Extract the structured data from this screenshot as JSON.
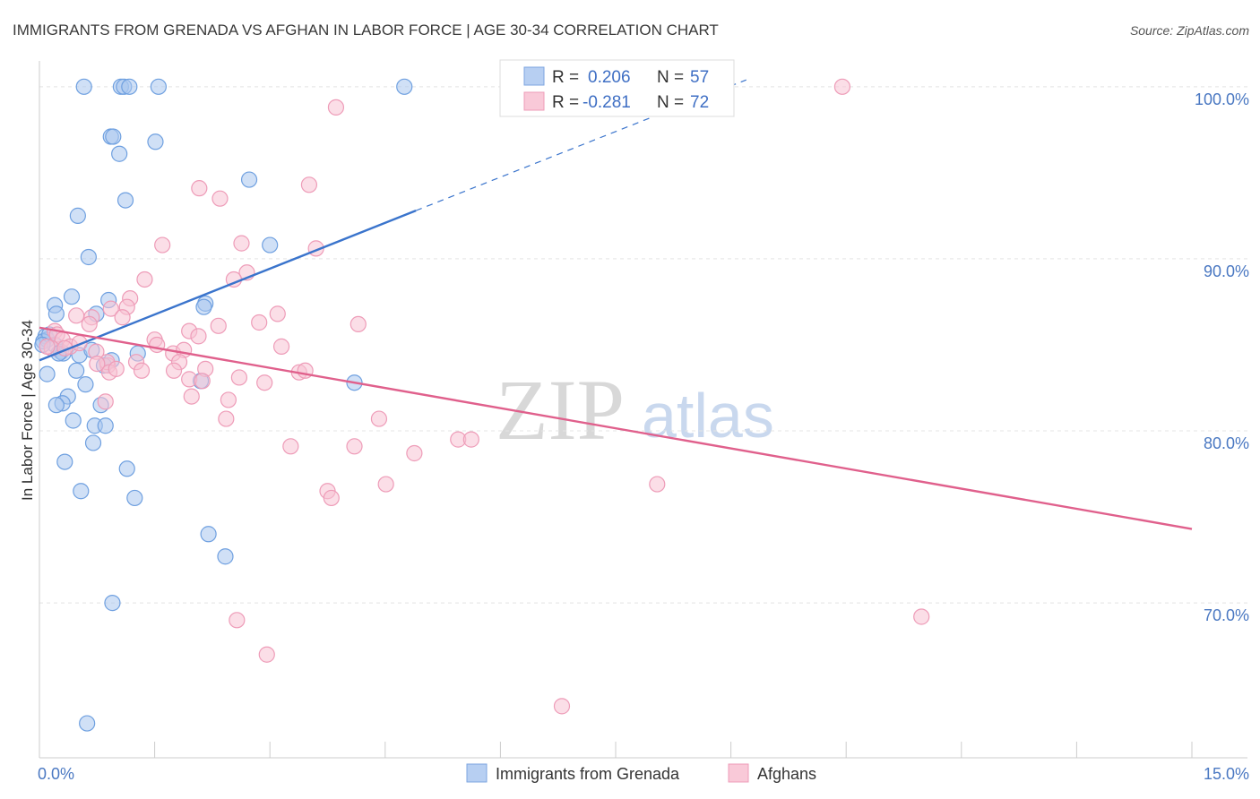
{
  "chart_data": {
    "type": "scatter",
    "title": "IMMIGRANTS FROM GRENADA VS AFGHAN IN LABOR FORCE | AGE 30-34 CORRELATION CHART",
    "source": "Source: ZipAtlas.com",
    "xlabel": "",
    "ylabel": "In Labor Force | Age 30-34",
    "xlim": [
      0,
      15
    ],
    "ylim": [
      61,
      101.5
    ],
    "x_tick_labels": [
      {
        "value": 0,
        "label": "0.0%"
      },
      {
        "value": 15,
        "label": "15.0%"
      }
    ],
    "y_tick_labels": [
      {
        "value": 70,
        "label": "70.0%"
      },
      {
        "value": 80,
        "label": "80.0%"
      },
      {
        "value": 90,
        "label": "90.0%"
      },
      {
        "value": 100,
        "label": "100.0%"
      }
    ],
    "grid": true,
    "legend": {
      "position": "top-center",
      "entries": [
        {
          "series": "Immigrants from Grenada",
          "r_label": "R =",
          "r_value": "0.206",
          "n_label": "N =",
          "n_value": "57"
        },
        {
          "series": "Afghans",
          "r_label": "R =",
          "r_value": "-0.281",
          "n_label": "N =",
          "n_value": "72"
        }
      ]
    },
    "bottom_legend": [
      "Immigrants from Grenada",
      "Afghans"
    ],
    "watermark": {
      "part1": "ZIP",
      "part2": "atlas"
    },
    "series": [
      {
        "name": "Immigrants from Grenada",
        "color": "#6fa0e0",
        "fill": "#a9c6ef",
        "line_color": "#3a74cc",
        "trend": {
          "x0": 0.0,
          "y0": 84.1,
          "x1": 4.9,
          "y1": 92.8,
          "dash_to_x": 9.2,
          "dash_to_y": 100.4
        },
        "points": [
          [
            0.58,
            100
          ],
          [
            1.06,
            100
          ],
          [
            1.1,
            100
          ],
          [
            1.17,
            100
          ],
          [
            1.55,
            100
          ],
          [
            4.75,
            100
          ],
          [
            0.93,
            97.1
          ],
          [
            0.96,
            97.1
          ],
          [
            1.04,
            96.1
          ],
          [
            1.51,
            96.8
          ],
          [
            2.73,
            94.6
          ],
          [
            1.12,
            93.4
          ],
          [
            0.5,
            92.5
          ],
          [
            0.64,
            90.1
          ],
          [
            3.0,
            90.8
          ],
          [
            0.42,
            87.8
          ],
          [
            0.2,
            87.3
          ],
          [
            0.22,
            86.8
          ],
          [
            0.9,
            87.6
          ],
          [
            2.16,
            87.4
          ],
          [
            2.14,
            87.2
          ],
          [
            0.74,
            86.8
          ],
          [
            0.08,
            85.5
          ],
          [
            0.1,
            85.3
          ],
          [
            0.05,
            85.2
          ],
          [
            0.13,
            85.6
          ],
          [
            0.2,
            85.0
          ],
          [
            0.04,
            85.0
          ],
          [
            0.28,
            84.6
          ],
          [
            0.31,
            84.5
          ],
          [
            0.25,
            84.5
          ],
          [
            0.52,
            84.4
          ],
          [
            0.68,
            84.7
          ],
          [
            1.28,
            84.5
          ],
          [
            0.94,
            84.1
          ],
          [
            0.84,
            83.8
          ],
          [
            0.48,
            83.5
          ],
          [
            0.1,
            83.3
          ],
          [
            2.1,
            82.9
          ],
          [
            0.6,
            82.7
          ],
          [
            4.1,
            82.8
          ],
          [
            0.37,
            82.0
          ],
          [
            0.3,
            81.6
          ],
          [
            0.22,
            81.5
          ],
          [
            0.8,
            81.5
          ],
          [
            0.44,
            80.6
          ],
          [
            0.72,
            80.3
          ],
          [
            0.86,
            80.3
          ],
          [
            0.7,
            79.3
          ],
          [
            0.33,
            78.2
          ],
          [
            1.14,
            77.8
          ],
          [
            0.54,
            76.5
          ],
          [
            1.24,
            76.1
          ],
          [
            2.2,
            74.0
          ],
          [
            2.42,
            72.7
          ],
          [
            0.95,
            70.0
          ],
          [
            0.62,
            63.0
          ]
        ]
      },
      {
        "name": "Afghans",
        "color": "#ee9cb8",
        "fill": "#f8c2d4",
        "line_color": "#e0608c",
        "trend": {
          "x0": 0.0,
          "y0": 86.0,
          "x1": 15.0,
          "y1": 74.3
        },
        "points": [
          [
            10.45,
            100
          ],
          [
            3.86,
            98.8
          ],
          [
            2.08,
            94.1
          ],
          [
            3.51,
            94.3
          ],
          [
            2.35,
            93.5
          ],
          [
            1.6,
            90.8
          ],
          [
            2.63,
            90.9
          ],
          [
            3.6,
            90.6
          ],
          [
            2.7,
            89.2
          ],
          [
            2.53,
            88.8
          ],
          [
            1.37,
            88.8
          ],
          [
            1.18,
            87.7
          ],
          [
            1.14,
            87.2
          ],
          [
            0.93,
            87.1
          ],
          [
            0.48,
            86.7
          ],
          [
            1.08,
            86.6
          ],
          [
            0.68,
            86.6
          ],
          [
            3.1,
            86.8
          ],
          [
            2.86,
            86.3
          ],
          [
            4.15,
            86.2
          ],
          [
            0.65,
            86.2
          ],
          [
            1.95,
            85.8
          ],
          [
            2.33,
            86.1
          ],
          [
            0.2,
            85.8
          ],
          [
            0.23,
            85.6
          ],
          [
            0.3,
            85.3
          ],
          [
            1.5,
            85.3
          ],
          [
            2.07,
            85.5
          ],
          [
            1.53,
            85.0
          ],
          [
            3.15,
            84.9
          ],
          [
            0.16,
            84.8
          ],
          [
            0.4,
            84.9
          ],
          [
            0.74,
            84.6
          ],
          [
            1.74,
            84.5
          ],
          [
            1.88,
            84.7
          ],
          [
            1.82,
            84.0
          ],
          [
            1.26,
            84.0
          ],
          [
            0.89,
            83.8
          ],
          [
            0.88,
            84.0
          ],
          [
            0.75,
            83.9
          ],
          [
            1.33,
            83.5
          ],
          [
            1.75,
            83.5
          ],
          [
            2.16,
            83.6
          ],
          [
            3.38,
            83.4
          ],
          [
            3.46,
            83.5
          ],
          [
            0.91,
            83.4
          ],
          [
            2.6,
            83.1
          ],
          [
            1.95,
            83.0
          ],
          [
            2.12,
            82.9
          ],
          [
            2.93,
            82.8
          ],
          [
            1.98,
            82.0
          ],
          [
            2.46,
            81.8
          ],
          [
            0.86,
            81.7
          ],
          [
            2.43,
            80.7
          ],
          [
            4.42,
            80.7
          ],
          [
            5.45,
            79.5
          ],
          [
            5.62,
            79.5
          ],
          [
            3.27,
            79.1
          ],
          [
            4.1,
            79.1
          ],
          [
            4.88,
            78.7
          ],
          [
            4.51,
            76.9
          ],
          [
            8.04,
            76.9
          ],
          [
            3.75,
            76.5
          ],
          [
            3.8,
            76.1
          ],
          [
            11.48,
            69.2
          ],
          [
            2.57,
            69.0
          ],
          [
            2.96,
            67.0
          ],
          [
            6.8,
            64.0
          ],
          [
            0.1,
            84.9
          ],
          [
            0.52,
            85.1
          ],
          [
            1.0,
            83.6
          ],
          [
            0.33,
            84.8
          ]
        ]
      }
    ]
  }
}
